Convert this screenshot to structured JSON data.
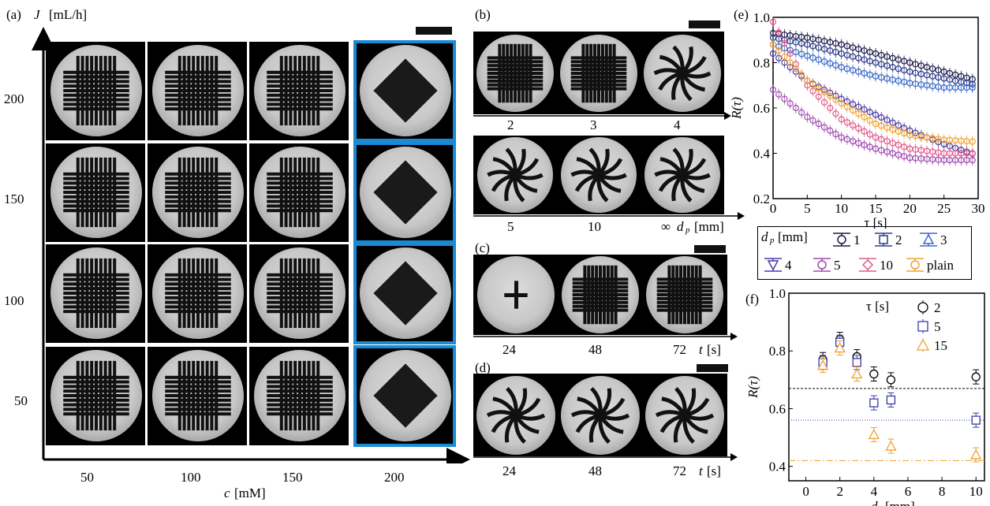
{
  "panel_a": {
    "label": "(a)",
    "y_axis_var": "J",
    "y_axis_unit": "[mL/h]",
    "x_axis_var": "c",
    "x_axis_unit": "[mM]",
    "rows": [
      "200",
      "150",
      "100",
      "50"
    ],
    "cols": [
      "50",
      "100",
      "150",
      "200"
    ]
  },
  "panel_b": {
    "label": "(b)",
    "top_labels": [
      "2",
      "3",
      "4"
    ],
    "bottom_labels": [
      "5",
      "10",
      "∞"
    ],
    "axis_var": "d",
    "axis_sub": "p",
    "axis_unit": "[mm]"
  },
  "panel_c": {
    "label": "(c)",
    "labels": [
      "24",
      "48",
      "72"
    ],
    "axis_var": "t",
    "axis_unit": "[s]"
  },
  "panel_d": {
    "label": "(d)",
    "labels": [
      "24",
      "48",
      "72"
    ],
    "axis_var": "t",
    "axis_unit": "[s]"
  },
  "panel_e": {
    "label": "(e)",
    "ylabel": "R(τ)",
    "xlabel": "τ [s]",
    "legend_title": "d",
    "legend_sub": "p",
    "legend_unit": "[mm]",
    "legend": [
      "1",
      "2",
      "3",
      "4",
      "5",
      "10",
      "plain"
    ]
  },
  "panel_f": {
    "label": "(f)",
    "ylabel": "R(τ)",
    "xlabel_var": "d",
    "xlabel_sub": "p",
    "xlabel_unit": "[mm]",
    "legend_title": "τ [s]",
    "legend": [
      "2",
      "5",
      "15"
    ]
  },
  "colors": {
    "d1": "#1b1b4a",
    "d2": "#2a3a8a",
    "d3": "#3a6ac8",
    "d4": "#4a3aa8",
    "d5": "#a04ab0",
    "d10": "#e05a8a",
    "plain": "#f0a030",
    "tau2": "#000000",
    "tau5": "#3a3ab0",
    "tau15": "#f0a030"
  },
  "chart_data": [
    {
      "type": "line",
      "panel": "e",
      "xlabel": "τ [s]",
      "ylabel": "R(τ)",
      "xlim": [
        0,
        30
      ],
      "ylim": [
        0.2,
        1.0
      ],
      "xticks": [
        0,
        5,
        10,
        15,
        20,
        25,
        30
      ],
      "yticks": [
        0.2,
        0.4,
        0.6,
        0.8,
        1.0
      ],
      "x": [
        0,
        5,
        10,
        15,
        20,
        25,
        30
      ],
      "series": [
        {
          "name": "1",
          "values": [
            0.93,
            0.91,
            0.88,
            0.84,
            0.8,
            0.76,
            0.72
          ]
        },
        {
          "name": "2",
          "values": [
            0.91,
            0.88,
            0.84,
            0.8,
            0.76,
            0.73,
            0.7
          ]
        },
        {
          "name": "3",
          "values": [
            0.88,
            0.83,
            0.78,
            0.74,
            0.71,
            0.69,
            0.69
          ]
        },
        {
          "name": "4",
          "values": [
            0.84,
            0.72,
            0.64,
            0.57,
            0.5,
            0.44,
            0.39
          ]
        },
        {
          "name": "5",
          "values": [
            0.68,
            0.56,
            0.47,
            0.42,
            0.38,
            0.37,
            0.37
          ]
        },
        {
          "name": "10",
          "values": [
            0.98,
            0.7,
            0.55,
            0.47,
            0.42,
            0.4,
            0.4
          ]
        },
        {
          "name": "plain",
          "values": [
            0.88,
            0.72,
            0.62,
            0.53,
            0.48,
            0.46,
            0.45
          ]
        }
      ]
    },
    {
      "type": "scatter",
      "panel": "f",
      "xlabel": "d_p [mm]",
      "ylabel": "R(τ)",
      "xlim": [
        -1,
        10.5
      ],
      "ylim": [
        0.35,
        1.0
      ],
      "xticks": [
        0,
        2,
        4,
        6,
        8,
        10
      ],
      "yticks": [
        0.4,
        0.6,
        0.8,
        1.0
      ],
      "x": [
        1,
        2,
        3,
        4,
        5,
        10
      ],
      "series": [
        {
          "name": "2",
          "values": [
            0.77,
            0.84,
            0.78,
            0.72,
            0.7,
            0.71
          ],
          "plain_reference": 0.67
        },
        {
          "name": "5",
          "values": [
            0.76,
            0.83,
            0.76,
            0.62,
            0.63,
            0.56
          ],
          "plain_reference": 0.56
        },
        {
          "name": "15",
          "values": [
            0.75,
            0.81,
            0.72,
            0.51,
            0.47,
            0.44
          ],
          "plain_reference": 0.42
        }
      ]
    }
  ]
}
